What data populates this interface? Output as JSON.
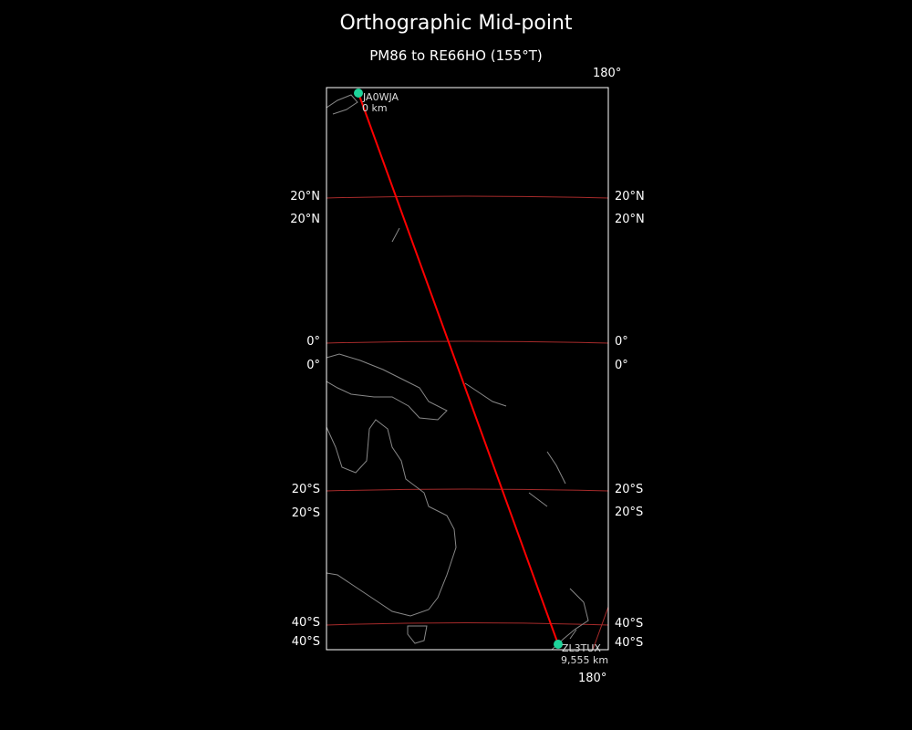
{
  "title": "Orthographic Mid-point",
  "subtitle": "PM86 to RE66HO (155°T)",
  "colors": {
    "background": "#000000",
    "path": "#ff0000",
    "gridline": "#a52a2a",
    "coast": "#888888",
    "station": "#1ed39a",
    "frame": "#ffffff"
  },
  "meridian_labels": {
    "top": "180°",
    "bottom": "180°"
  },
  "latitude_labels": {
    "left_upper": [
      "20°N",
      "0°",
      "20°S",
      "40°S"
    ],
    "left_lower": [
      "20°N",
      "0°",
      "20°S",
      "40°S"
    ],
    "right_upper": [
      "20°N",
      "0°",
      "20°S",
      "40°S"
    ],
    "right_lower": [
      "20°N",
      "0°",
      "20°S",
      "40°S"
    ]
  },
  "stations": [
    {
      "call": "JA0WJA",
      "distance": "0 km"
    },
    {
      "call": "ZL3TUX",
      "distance": "9,555 km"
    }
  ]
}
